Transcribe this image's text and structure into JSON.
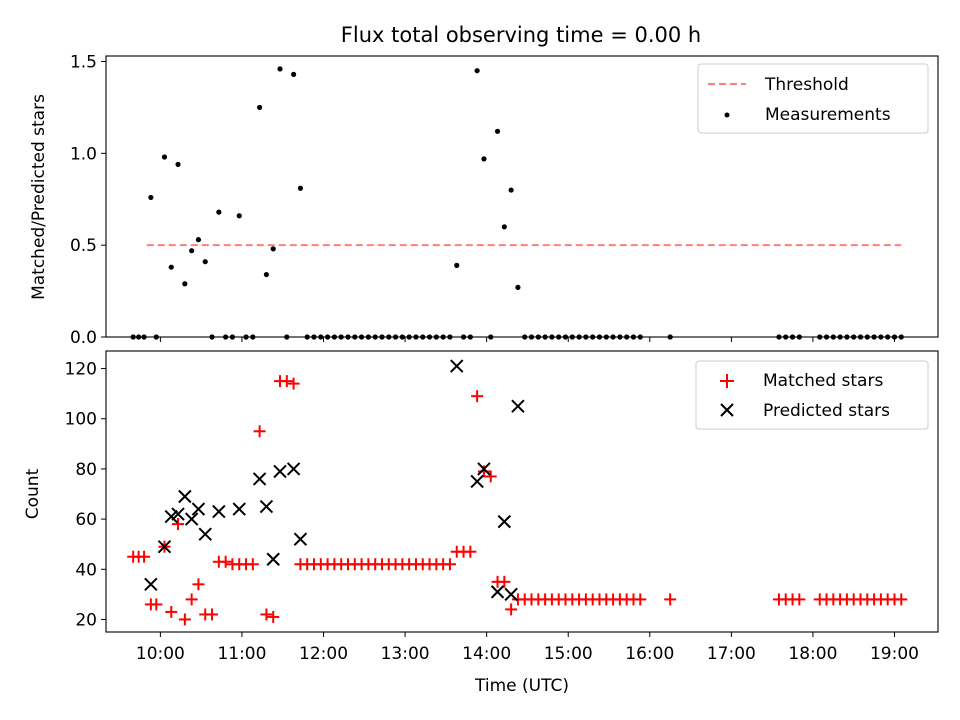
{
  "title": "Flux total observing time = 0.00 h",
  "colors": {
    "threshold": "#ff7f7f",
    "measurement": "#000000",
    "matched": "#ff0000",
    "predicted": "#000000"
  },
  "chart_data": [
    {
      "type": "scatter",
      "ylabel": "Matched/Predicted stars",
      "xlim": [
        "09:20",
        "19:32"
      ],
      "ylim": [
        0,
        1.53
      ],
      "yticks": [
        "0.0",
        "0.5",
        "1.0",
        "1.5"
      ],
      "legend_position": "top-right",
      "threshold": {
        "name": "Threshold",
        "value": 0.5,
        "x": [
          "09:50",
          "19:05"
        ],
        "style": "dashed"
      },
      "series": [
        {
          "name": "Measurements",
          "points": [
            [
              "09:40",
              0
            ],
            [
              "09:44",
              0
            ],
            [
              "09:48",
              0
            ],
            [
              "09:53",
              0.76
            ],
            [
              "09:57",
              0
            ],
            [
              "10:03",
              0.98
            ],
            [
              "10:08",
              0.38
            ],
            [
              "10:13",
              0.94
            ],
            [
              "10:18",
              0.29
            ],
            [
              "10:23",
              0.47
            ],
            [
              "10:28",
              0.53
            ],
            [
              "10:33",
              0.41
            ],
            [
              "10:38",
              0
            ],
            [
              "10:43",
              0.68
            ],
            [
              "10:48",
              0
            ],
            [
              "10:53",
              0
            ],
            [
              "10:58",
              0.66
            ],
            [
              "11:03",
              0
            ],
            [
              "11:08",
              0
            ],
            [
              "11:13",
              1.25
            ],
            [
              "11:18",
              0.34
            ],
            [
              "11:23",
              0.48
            ],
            [
              "11:28",
              1.46
            ],
            [
              "11:33",
              0
            ],
            [
              "11:38",
              1.43
            ],
            [
              "11:43",
              0.81
            ],
            [
              "11:48",
              0
            ],
            [
              "11:53",
              0
            ],
            [
              "11:58",
              0
            ],
            [
              "12:03",
              0
            ],
            [
              "12:08",
              0
            ],
            [
              "12:13",
              0
            ],
            [
              "12:18",
              0
            ],
            [
              "12:23",
              0
            ],
            [
              "12:28",
              0
            ],
            [
              "12:33",
              0
            ],
            [
              "12:38",
              0
            ],
            [
              "12:43",
              0
            ],
            [
              "12:48",
              0
            ],
            [
              "12:53",
              0
            ],
            [
              "12:58",
              0
            ],
            [
              "13:03",
              0
            ],
            [
              "13:08",
              0
            ],
            [
              "13:13",
              0
            ],
            [
              "13:18",
              0
            ],
            [
              "13:23",
              0
            ],
            [
              "13:28",
              0
            ],
            [
              "13:33",
              0
            ],
            [
              "13:38",
              0.39
            ],
            [
              "13:43",
              0
            ],
            [
              "13:48",
              0
            ],
            [
              "13:53",
              1.45
            ],
            [
              "13:58",
              0.97
            ],
            [
              "14:03",
              0
            ],
            [
              "14:08",
              1.12
            ],
            [
              "14:13",
              0.6
            ],
            [
              "14:18",
              0.8
            ],
            [
              "14:23",
              0.27
            ],
            [
              "14:28",
              0
            ],
            [
              "14:33",
              0
            ],
            [
              "14:38",
              0
            ],
            [
              "14:43",
              0
            ],
            [
              "14:48",
              0
            ],
            [
              "14:53",
              0
            ],
            [
              "14:58",
              0
            ],
            [
              "15:03",
              0
            ],
            [
              "15:08",
              0
            ],
            [
              "15:13",
              0
            ],
            [
              "15:18",
              0
            ],
            [
              "15:23",
              0
            ],
            [
              "15:28",
              0
            ],
            [
              "15:33",
              0
            ],
            [
              "15:38",
              0
            ],
            [
              "15:43",
              0
            ],
            [
              "15:48",
              0
            ],
            [
              "15:53",
              0
            ],
            [
              "16:15",
              0
            ],
            [
              "17:35",
              0
            ],
            [
              "17:40",
              0
            ],
            [
              "17:45",
              0
            ],
            [
              "17:50",
              0
            ],
            [
              "18:05",
              0
            ],
            [
              "18:10",
              0
            ],
            [
              "18:15",
              0
            ],
            [
              "18:20",
              0
            ],
            [
              "18:25",
              0
            ],
            [
              "18:30",
              0
            ],
            [
              "18:35",
              0
            ],
            [
              "18:40",
              0
            ],
            [
              "18:45",
              0
            ],
            [
              "18:50",
              0
            ],
            [
              "18:55",
              0
            ],
            [
              "19:00",
              0
            ],
            [
              "19:05",
              0
            ]
          ]
        }
      ]
    },
    {
      "type": "scatter",
      "ylabel": "Count",
      "xlabel": "Time (UTC)",
      "xlim": [
        "09:20",
        "19:32"
      ],
      "ylim": [
        15,
        127
      ],
      "yticks": [
        "20",
        "40",
        "60",
        "80",
        "100",
        "120"
      ],
      "xticks": [
        "10:00",
        "11:00",
        "12:00",
        "13:00",
        "14:00",
        "15:00",
        "16:00",
        "17:00",
        "18:00",
        "19:00"
      ],
      "legend_position": "top-right",
      "series": [
        {
          "name": "Matched stars",
          "marker": "plus",
          "points": [
            [
              "09:40",
              45
            ],
            [
              "09:44",
              45
            ],
            [
              "09:48",
              45
            ],
            [
              "09:53",
              26
            ],
            [
              "09:57",
              26
            ],
            [
              "10:03",
              49
            ],
            [
              "10:08",
              23
            ],
            [
              "10:13",
              58
            ],
            [
              "10:18",
              20
            ],
            [
              "10:23",
              28
            ],
            [
              "10:28",
              34
            ],
            [
              "10:33",
              22
            ],
            [
              "10:38",
              22
            ],
            [
              "10:43",
              43
            ],
            [
              "10:48",
              43
            ],
            [
              "10:53",
              42
            ],
            [
              "10:58",
              42
            ],
            [
              "11:03",
              42
            ],
            [
              "11:08",
              42
            ],
            [
              "11:13",
              95
            ],
            [
              "11:18",
              22
            ],
            [
              "11:23",
              21
            ],
            [
              "11:28",
              115
            ],
            [
              "11:33",
              115
            ],
            [
              "11:38",
              114
            ],
            [
              "11:43",
              42
            ],
            [
              "11:48",
              42
            ],
            [
              "11:53",
              42
            ],
            [
              "11:58",
              42
            ],
            [
              "12:03",
              42
            ],
            [
              "12:08",
              42
            ],
            [
              "12:13",
              42
            ],
            [
              "12:18",
              42
            ],
            [
              "12:23",
              42
            ],
            [
              "12:28",
              42
            ],
            [
              "12:33",
              42
            ],
            [
              "12:38",
              42
            ],
            [
              "12:43",
              42
            ],
            [
              "12:48",
              42
            ],
            [
              "12:53",
              42
            ],
            [
              "12:58",
              42
            ],
            [
              "13:03",
              42
            ],
            [
              "13:08",
              42
            ],
            [
              "13:13",
              42
            ],
            [
              "13:18",
              42
            ],
            [
              "13:23",
              42
            ],
            [
              "13:28",
              42
            ],
            [
              "13:33",
              42
            ],
            [
              "13:38",
              47
            ],
            [
              "13:43",
              47
            ],
            [
              "13:48",
              47
            ],
            [
              "13:53",
              109
            ],
            [
              "13:58",
              79
            ],
            [
              "14:03",
              77
            ],
            [
              "14:08",
              35
            ],
            [
              "14:13",
              35
            ],
            [
              "14:18",
              24
            ],
            [
              "14:23",
              28
            ],
            [
              "14:28",
              28
            ],
            [
              "14:33",
              28
            ],
            [
              "14:38",
              28
            ],
            [
              "14:43",
              28
            ],
            [
              "14:48",
              28
            ],
            [
              "14:53",
              28
            ],
            [
              "14:58",
              28
            ],
            [
              "15:03",
              28
            ],
            [
              "15:08",
              28
            ],
            [
              "15:13",
              28
            ],
            [
              "15:18",
              28
            ],
            [
              "15:23",
              28
            ],
            [
              "15:28",
              28
            ],
            [
              "15:33",
              28
            ],
            [
              "15:38",
              28
            ],
            [
              "15:43",
              28
            ],
            [
              "15:48",
              28
            ],
            [
              "15:53",
              28
            ],
            [
              "16:15",
              28
            ],
            [
              "17:35",
              28
            ],
            [
              "17:40",
              28
            ],
            [
              "17:45",
              28
            ],
            [
              "17:50",
              28
            ],
            [
              "18:05",
              28
            ],
            [
              "18:10",
              28
            ],
            [
              "18:15",
              28
            ],
            [
              "18:20",
              28
            ],
            [
              "18:25",
              28
            ],
            [
              "18:30",
              28
            ],
            [
              "18:35",
              28
            ],
            [
              "18:40",
              28
            ],
            [
              "18:45",
              28
            ],
            [
              "18:50",
              28
            ],
            [
              "18:55",
              28
            ],
            [
              "19:00",
              28
            ],
            [
              "19:05",
              28
            ]
          ]
        },
        {
          "name": "Predicted stars",
          "marker": "x",
          "points": [
            [
              "09:53",
              34
            ],
            [
              "10:03",
              49
            ],
            [
              "10:08",
              61
            ],
            [
              "10:13",
              62
            ],
            [
              "10:18",
              69
            ],
            [
              "10:23",
              60
            ],
            [
              "10:28",
              64
            ],
            [
              "10:33",
              54
            ],
            [
              "10:43",
              63
            ],
            [
              "10:58",
              64
            ],
            [
              "11:13",
              76
            ],
            [
              "11:18",
              65
            ],
            [
              "11:23",
              44
            ],
            [
              "11:28",
              79
            ],
            [
              "11:38",
              80
            ],
            [
              "11:43",
              52
            ],
            [
              "13:38",
              121
            ],
            [
              "13:53",
              75
            ],
            [
              "13:58",
              80
            ],
            [
              "14:08",
              31
            ],
            [
              "14:13",
              59
            ],
            [
              "14:18",
              30
            ],
            [
              "14:23",
              105
            ]
          ]
        }
      ]
    }
  ]
}
